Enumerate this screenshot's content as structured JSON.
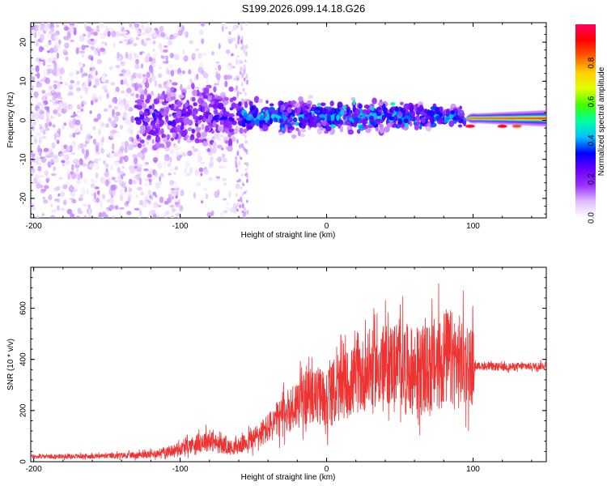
{
  "chart_data": [
    {
      "type": "heatmap",
      "title": "S199.2026.099.14.18.G26",
      "xlabel": "Height of straight line (km)",
      "ylabel": "Frequency (Hz)",
      "xlim": [
        -202,
        150
      ],
      "ylim": [
        -25,
        25
      ],
      "x_ticks": [
        -200,
        -100,
        0,
        100
      ],
      "y_ticks": [
        -20,
        -10,
        0,
        10,
        20
      ],
      "colorbar": {
        "label": "Normalized spectral amplitude",
        "range": [
          0.0,
          1.0
        ],
        "ticks": [
          0.0,
          0.2,
          0.4,
          0.6,
          0.8
        ],
        "tick_labels": [
          "0.0",
          "0.2",
          "0.4",
          "0.6",
          "0.8"
        ],
        "stops": [
          "#ffffff",
          "#e0c0ff",
          "#9b30ff",
          "#6a00ff",
          "#0000ff",
          "#00c0ff",
          "#00ffa0",
          "#40ff00",
          "#e0ff00",
          "#ffd000",
          "#ff6000",
          "#ff0000",
          "#ff0060"
        ]
      },
      "features": [
        {
          "description": "scattered noise",
          "x_range": [
            -202,
            -60
          ],
          "freq_range": [
            -25,
            25
          ],
          "amplitude": 0.1
        },
        {
          "description": "central band",
          "x_range": [
            -60,
            95
          ],
          "freq_range": [
            -8,
            8
          ],
          "amplitude": 0.3
        },
        {
          "description": "strong line",
          "x_range": [
            95,
            150
          ],
          "freq_range": [
            -2,
            2
          ],
          "amplitude": 0.9
        }
      ]
    },
    {
      "type": "line",
      "xlabel": "Height of straight line (km)",
      "ylabel": "SNR (10 * v/v)",
      "xlim": [
        -202,
        150
      ],
      "ylim": [
        0,
        760
      ],
      "x_ticks": [
        -200,
        -100,
        0,
        100
      ],
      "y_ticks": [
        0,
        200,
        400,
        600
      ],
      "series": [
        {
          "name": "SNR",
          "color": "#ee3333",
          "envelope_x": [
            -202,
            -150,
            -120,
            -100,
            -90,
            -80,
            -75,
            -65,
            -60,
            -50,
            -40,
            -30,
            -20,
            -10,
            0,
            10,
            20,
            30,
            40,
            50,
            60,
            70,
            80,
            90,
            100,
            101,
            120,
            150
          ],
          "envelope_mean": [
            20,
            22,
            28,
            50,
            70,
            85,
            70,
            55,
            60,
            90,
            130,
            180,
            230,
            260,
            250,
            290,
            320,
            360,
            380,
            390,
            350,
            360,
            410,
            390,
            380,
            375,
            370,
            375
          ],
          "envelope_spread": [
            8,
            10,
            15,
            25,
            35,
            45,
            35,
            30,
            30,
            45,
            60,
            80,
            100,
            110,
            120,
            130,
            140,
            150,
            160,
            170,
            170,
            180,
            200,
            190,
            160,
            15,
            15,
            15
          ]
        }
      ]
    }
  ]
}
